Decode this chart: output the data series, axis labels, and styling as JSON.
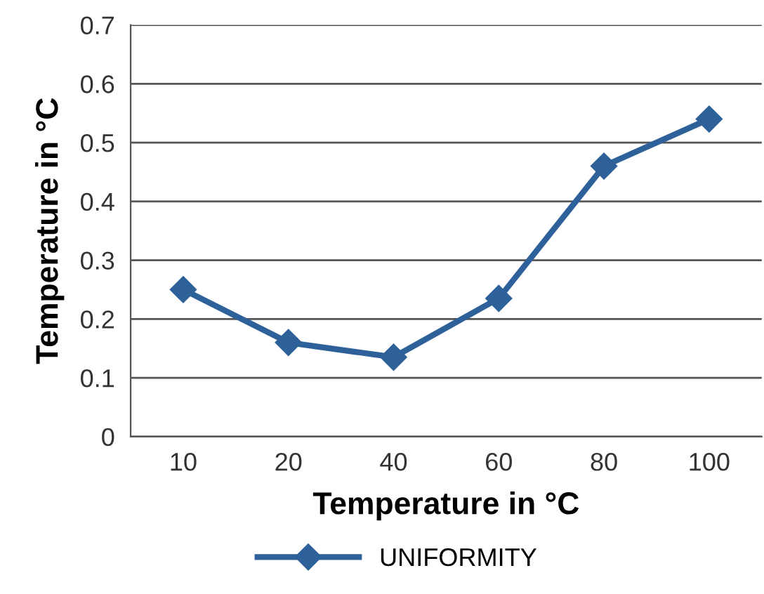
{
  "chart_data": {
    "type": "line",
    "xlabel": "Temperature in °C",
    "ylabel": "Temperature in °C",
    "categories": [
      "10",
      "20",
      "40",
      "60",
      "80",
      "100"
    ],
    "series": [
      {
        "name": "UNIFORMITY",
        "color": "#2e6199",
        "values": [
          0.25,
          0.16,
          0.135,
          0.235,
          0.46,
          0.54
        ]
      }
    ],
    "ylim": [
      0,
      0.7
    ],
    "yticks": [
      0,
      0.1,
      0.2,
      0.3,
      0.4,
      0.5,
      0.6,
      0.7
    ],
    "grid": "y",
    "legend": "bottom",
    "marker": "diamond",
    "line_style": "solid"
  }
}
